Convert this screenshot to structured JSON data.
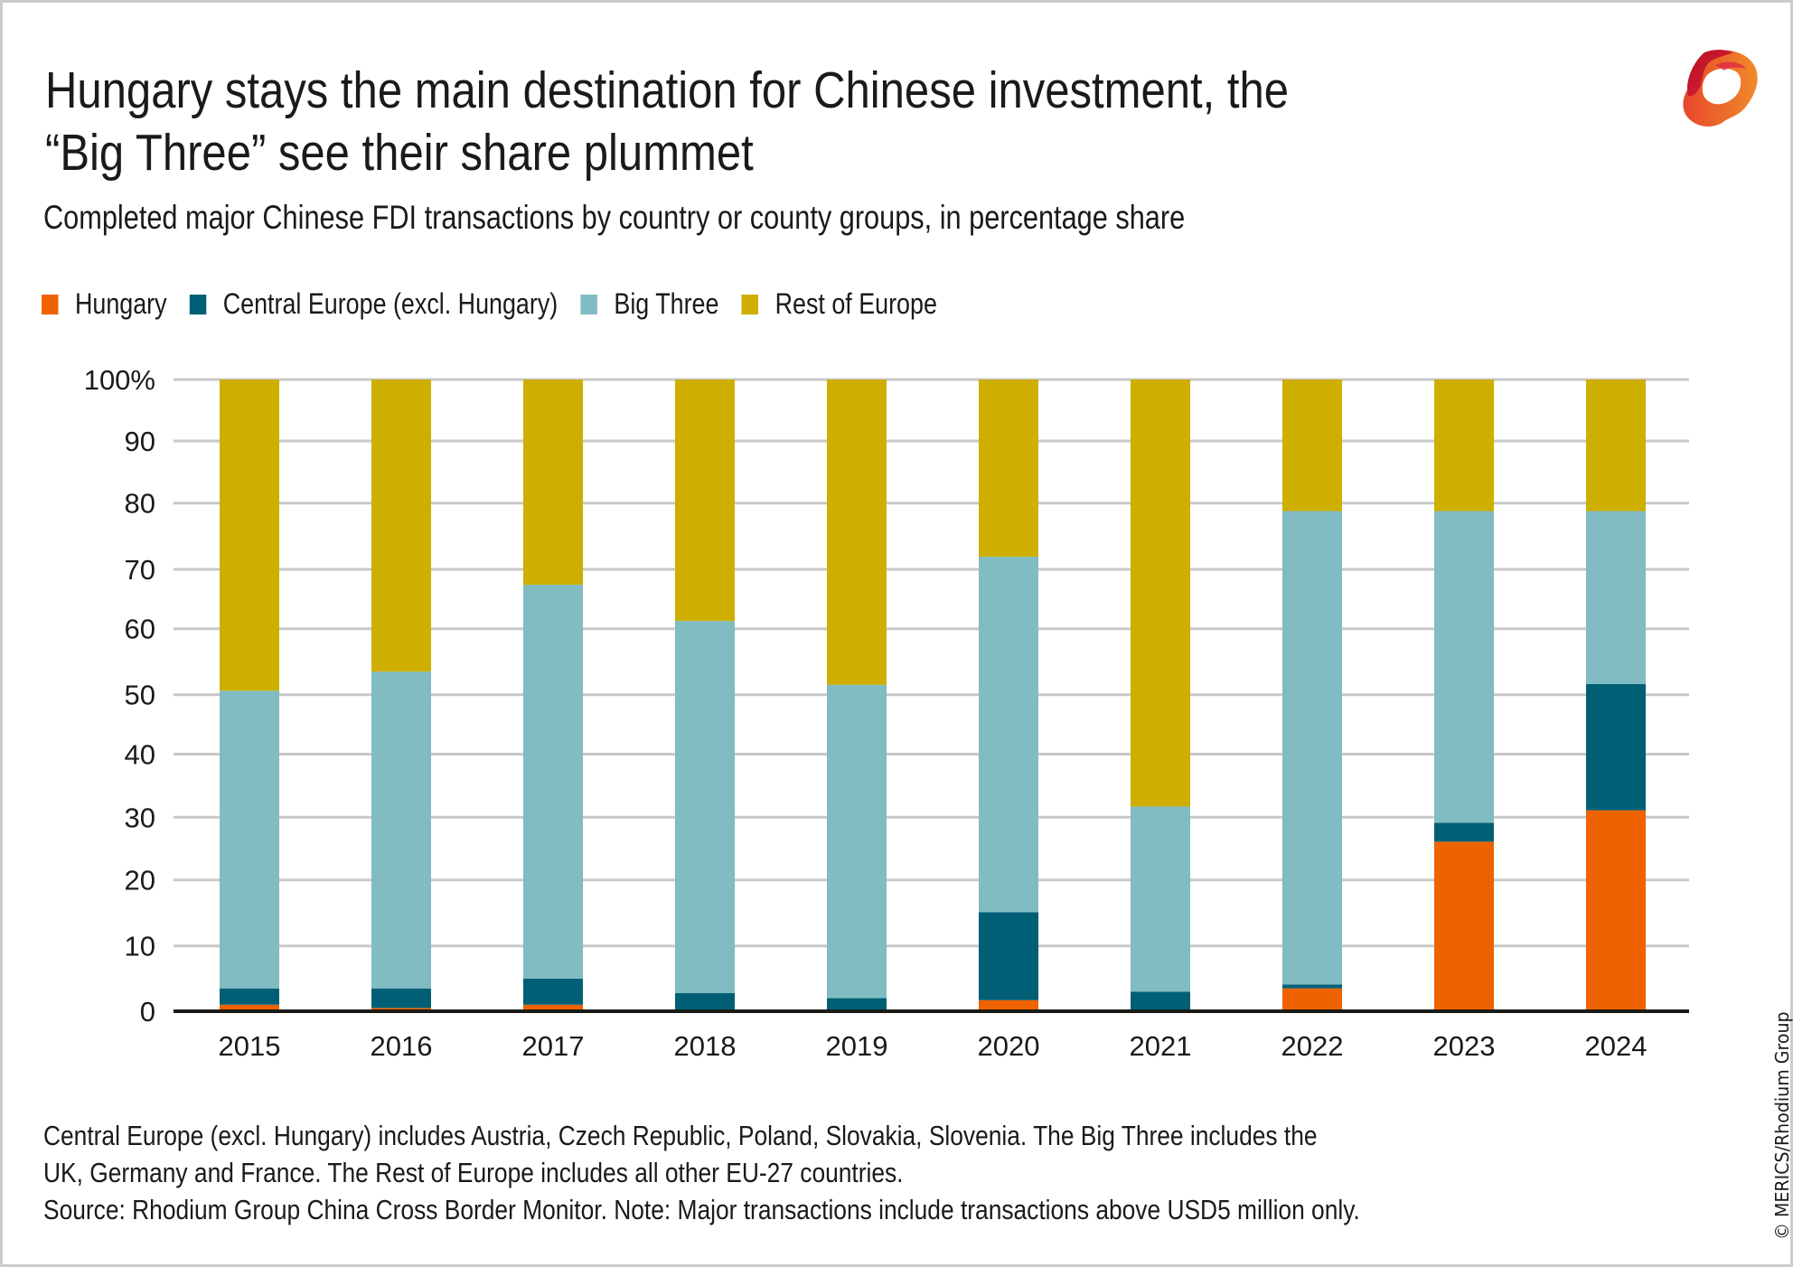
{
  "header": {
    "title_line1": "Hungary stays the main destination for Chinese investment, the",
    "title_line2": "“Big Three” see their share plummet",
    "subtitle": "Completed major Chinese FDI transactions by country or county groups, in percentage share",
    "logo_icon": "merics-ribbon-logo-icon"
  },
  "legend": [
    {
      "label": "Hungary",
      "color": "#ee6300"
    },
    {
      "label": "Central Europe (excl. Hungary)",
      "color": "#005f75"
    },
    {
      "label": "Big Three",
      "color": "#80bcc2"
    },
    {
      "label": "Rest of Europe",
      "color": "#ceaf00"
    }
  ],
  "chart_data": {
    "type": "bar",
    "stacked": true,
    "title": "Hungary stays the main destination for Chinese investment, the “Big Three” see their share plummet",
    "subtitle": "Completed major Chinese FDI transactions by country or county groups, in percentage share",
    "xlabel": "",
    "ylabel": "",
    "ylim": [
      0,
      100
    ],
    "yticks": [
      0,
      10,
      20,
      30,
      40,
      50,
      60,
      70,
      80,
      90,
      100
    ],
    "ytick_labels": [
      "0",
      "10",
      "20",
      "30",
      "40",
      "50",
      "60",
      "70",
      "80",
      "90",
      "100%"
    ],
    "grid": true,
    "legend_position": "top-left",
    "categories": [
      "2015",
      "2016",
      "2017",
      "2018",
      "2019",
      "2020",
      "2021",
      "2022",
      "2023",
      "2024"
    ],
    "series": [
      {
        "name": "Hungary",
        "color": "#ee6300",
        "values": [
          1.0,
          0.5,
          1.0,
          0.0,
          0.0,
          1.7,
          0.0,
          3.5,
          26.1,
          31.1
        ]
      },
      {
        "name": "Central Europe (excl. Hungary)",
        "color": "#005f75",
        "values": [
          2.5,
          3.0,
          4.0,
          2.8,
          2.0,
          13.4,
          3.0,
          0.6,
          3.0,
          20.5
        ]
      },
      {
        "name": "Big Three",
        "color": "#80bcc2",
        "values": [
          47.1,
          50.0,
          62.4,
          58.5,
          49.5,
          56.8,
          28.7,
          74.7,
          49.7,
          27.2
        ]
      },
      {
        "name": "Rest of Europe",
        "color": "#ceaf00",
        "values": [
          49.4,
          46.5,
          32.6,
          38.7,
          48.5,
          28.1,
          68.3,
          21.2,
          21.2,
          21.2
        ]
      }
    ]
  },
  "footer": {
    "line1": "Central Europe (excl. Hungary) includes Austria, Czech Republic, Poland, Slovakia, Slovenia. The Big Three includes the",
    "line2": "UK, Germany and France. The Rest of Europe includes all other EU-27 countries.",
    "line3": "Source: Rhodium Group China Cross Border Monitor. Note: Major transactions include transactions above USD5 million only."
  },
  "copyright": "© MERICS/Rhodium Group"
}
